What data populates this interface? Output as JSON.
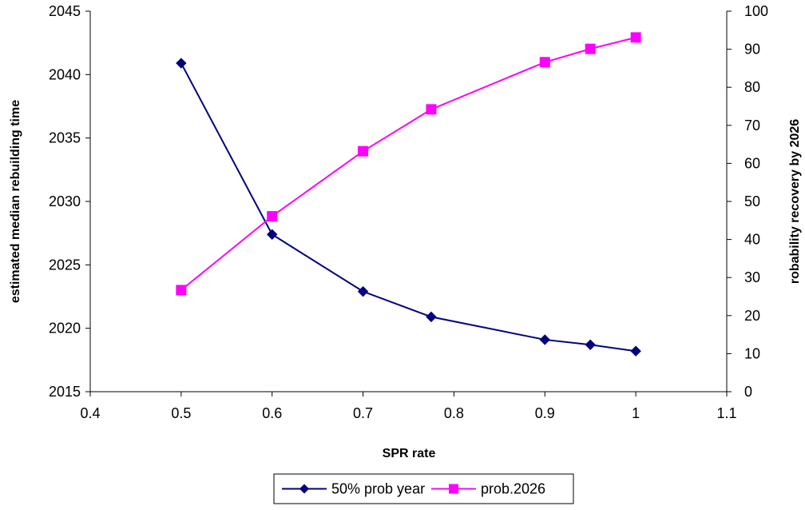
{
  "chart_data": {
    "type": "line",
    "xlabel": "SPR rate",
    "ylabel": "estimated median rebuilding time",
    "y2label": "robability recovery by 2026",
    "xlim": [
      0.4,
      1.1
    ],
    "ylim": [
      2015,
      2045
    ],
    "y2lim": [
      0,
      100
    ],
    "xticks": [
      "0.4",
      "0.5",
      "0.6",
      "0.7",
      "0.8",
      "0.9",
      "1",
      "1.1"
    ],
    "yticks": [
      "2015",
      "2020",
      "2025",
      "2030",
      "2035",
      "2040",
      "2045"
    ],
    "y2ticks": [
      "0",
      "10",
      "20",
      "30",
      "40",
      "50",
      "60",
      "70",
      "80",
      "90",
      "100"
    ],
    "grid": false,
    "legend": "bottom",
    "series": [
      {
        "name": "50% prob year",
        "axis": "left",
        "color": "#000080",
        "marker": "diamond",
        "x": [
          0.5,
          0.6,
          0.7,
          0.775,
          0.9,
          0.95,
          1.0
        ],
        "y": [
          2040.9,
          2027.4,
          2022.9,
          2020.9,
          2019.1,
          2018.7,
          2018.2
        ]
      },
      {
        "name": "prob.2026",
        "axis": "right",
        "color": "#ff00ff",
        "marker": "square",
        "x": [
          0.5,
          0.6,
          0.7,
          0.775,
          0.9,
          0.95,
          1.0
        ],
        "y": [
          26.7,
          46.1,
          63.2,
          74.2,
          86.6,
          90.1,
          93.1
        ]
      }
    ]
  }
}
